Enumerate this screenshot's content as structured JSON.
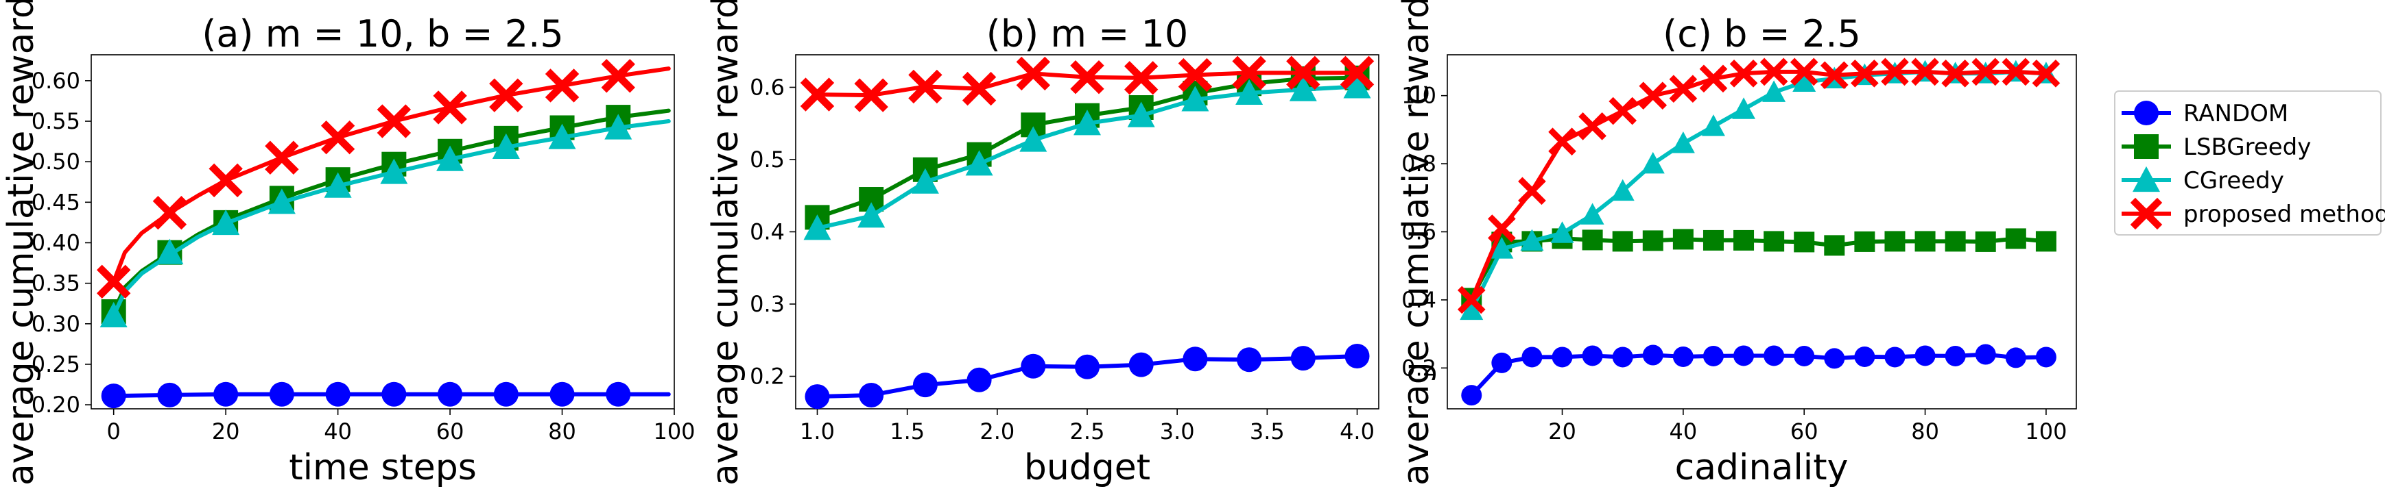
{
  "chart_data": [
    {
      "type": "line",
      "title": "(a) m = 10, b = 2.5",
      "xlabel": "time steps",
      "ylabel": "average cumulative rewards",
      "xlim": [
        -4,
        100
      ],
      "ylim": [
        0.195,
        0.632
      ],
      "xticks": [
        "0",
        "20",
        "40",
        "60",
        "80",
        "100"
      ],
      "yticks": [
        "0.20",
        "0.25",
        "0.30",
        "0.35",
        "0.40",
        "0.45",
        "0.50",
        "0.55",
        "0.60"
      ],
      "grid": false,
      "series": [
        {
          "name": "RANDOM",
          "curve_x": [
            0,
            10,
            20,
            30,
            40,
            50,
            60,
            70,
            80,
            90,
            99
          ],
          "curve_y": [
            0.211,
            0.212,
            0.213,
            0.213,
            0.213,
            0.213,
            0.213,
            0.213,
            0.213,
            0.213,
            0.213
          ],
          "marker_x": [
            0,
            10,
            20,
            30,
            40,
            50,
            60,
            70,
            80,
            90
          ],
          "marker_y": [
            0.211,
            0.212,
            0.213,
            0.213,
            0.213,
            0.213,
            0.213,
            0.213,
            0.213,
            0.213
          ]
        },
        {
          "name": "LSBGreedy",
          "curve_x": [
            0,
            2,
            5,
            10,
            15,
            20,
            30,
            40,
            50,
            60,
            70,
            80,
            90,
            99
          ],
          "curve_y": [
            0.315,
            0.345,
            0.365,
            0.388,
            0.41,
            0.428,
            0.455,
            0.478,
            0.497,
            0.513,
            0.529,
            0.542,
            0.555,
            0.563
          ],
          "marker_x": [
            0,
            10,
            20,
            30,
            40,
            50,
            60,
            70,
            80,
            90
          ],
          "marker_y": [
            0.315,
            0.388,
            0.425,
            0.455,
            0.478,
            0.497,
            0.513,
            0.529,
            0.542,
            0.555
          ]
        },
        {
          "name": "CGreedy",
          "curve_x": [
            0,
            2,
            5,
            10,
            15,
            20,
            30,
            40,
            50,
            60,
            70,
            80,
            90,
            99
          ],
          "curve_y": [
            0.31,
            0.34,
            0.362,
            0.385,
            0.407,
            0.424,
            0.45,
            0.47,
            0.487,
            0.503,
            0.518,
            0.53,
            0.542,
            0.55
          ],
          "marker_x": [
            0,
            10,
            20,
            30,
            40,
            50,
            60,
            70,
            80,
            90
          ],
          "marker_y": [
            0.31,
            0.388,
            0.424,
            0.45,
            0.47,
            0.487,
            0.503,
            0.518,
            0.53,
            0.542
          ]
        },
        {
          "name": "proposed method",
          "curve_x": [
            0,
            2,
            5,
            10,
            15,
            20,
            30,
            40,
            50,
            60,
            70,
            80,
            90,
            99
          ],
          "curve_y": [
            0.352,
            0.388,
            0.412,
            0.437,
            0.458,
            0.477,
            0.505,
            0.53,
            0.55,
            0.567,
            0.582,
            0.594,
            0.606,
            0.615
          ],
          "marker_x": [
            0,
            10,
            20,
            30,
            40,
            50,
            60,
            70,
            80,
            90
          ],
          "marker_y": [
            0.352,
            0.437,
            0.477,
            0.505,
            0.53,
            0.55,
            0.567,
            0.582,
            0.594,
            0.606
          ]
        }
      ]
    },
    {
      "type": "line",
      "title": "(b) m = 10",
      "xlabel": "budget",
      "ylabel": "average cumulative rewards",
      "xlim": [
        0.88,
        4.12
      ],
      "ylim": [
        0.155,
        0.645
      ],
      "xticks": [
        "1.0",
        "1.5",
        "2.0",
        "2.5",
        "3.0",
        "3.5",
        "4.0"
      ],
      "yticks": [
        "0.2",
        "0.3",
        "0.4",
        "0.5",
        "0.6"
      ],
      "grid": false,
      "series": [
        {
          "name": "RANDOM",
          "x": [
            1.0,
            1.3,
            1.6,
            1.9,
            2.2,
            2.5,
            2.8,
            3.1,
            3.4,
            3.7,
            4.0
          ],
          "values": [
            0.172,
            0.174,
            0.188,
            0.195,
            0.214,
            0.213,
            0.216,
            0.224,
            0.223,
            0.225,
            0.228
          ]
        },
        {
          "name": "LSBGreedy",
          "x": [
            1.0,
            1.3,
            1.6,
            1.9,
            2.2,
            2.5,
            2.8,
            3.1,
            3.4,
            3.7,
            4.0
          ],
          "values": [
            0.42,
            0.445,
            0.486,
            0.507,
            0.548,
            0.561,
            0.572,
            0.592,
            0.605,
            0.612,
            0.613
          ]
        },
        {
          "name": "CGreedy",
          "x": [
            1.0,
            1.3,
            1.6,
            1.9,
            2.2,
            2.5,
            2.8,
            3.1,
            3.4,
            3.7,
            4.0
          ],
          "values": [
            0.405,
            0.422,
            0.469,
            0.494,
            0.527,
            0.55,
            0.561,
            0.583,
            0.592,
            0.597,
            0.601
          ]
        },
        {
          "name": "proposed method",
          "x": [
            1.0,
            1.3,
            1.6,
            1.9,
            2.2,
            2.5,
            2.8,
            3.1,
            3.4,
            3.7,
            4.0
          ],
          "values": [
            0.59,
            0.589,
            0.601,
            0.598,
            0.619,
            0.614,
            0.613,
            0.617,
            0.62,
            0.62,
            0.62
          ]
        }
      ]
    },
    {
      "type": "line",
      "title": "(c) b = 2.5",
      "xlabel": "cadinality",
      "ylabel": "average cumulative rewards",
      "xlim": [
        1,
        105
      ],
      "ylim": [
        0.08,
        1.12
      ],
      "xticks": [
        "20",
        "40",
        "60",
        "80",
        "100"
      ],
      "yticks": [
        "0.2",
        "0.4",
        "0.6",
        "0.8",
        "1.0"
      ],
      "grid": false,
      "series": [
        {
          "name": "RANDOM",
          "x": [
            5,
            10,
            15,
            20,
            25,
            30,
            35,
            40,
            45,
            50,
            55,
            60,
            65,
            70,
            75,
            80,
            85,
            90,
            95,
            100
          ],
          "values": [
            0.12,
            0.215,
            0.232,
            0.232,
            0.236,
            0.232,
            0.238,
            0.233,
            0.235,
            0.236,
            0.236,
            0.235,
            0.228,
            0.233,
            0.232,
            0.236,
            0.235,
            0.24,
            0.23,
            0.232
          ]
        },
        {
          "name": "LSBGreedy",
          "x": [
            5,
            10,
            15,
            20,
            25,
            30,
            35,
            40,
            45,
            50,
            55,
            60,
            65,
            70,
            75,
            80,
            85,
            90,
            95,
            100
          ],
          "values": [
            0.405,
            0.57,
            0.572,
            0.58,
            0.576,
            0.572,
            0.574,
            0.578,
            0.575,
            0.575,
            0.572,
            0.57,
            0.56,
            0.571,
            0.572,
            0.572,
            0.572,
            0.571,
            0.58,
            0.572
          ]
        },
        {
          "name": "CGreedy",
          "x": [
            5,
            10,
            15,
            20,
            25,
            30,
            35,
            40,
            45,
            50,
            55,
            60,
            65,
            70,
            75,
            80,
            85,
            90,
            95,
            100
          ],
          "values": [
            0.37,
            0.55,
            0.573,
            0.596,
            0.65,
            0.72,
            0.8,
            0.86,
            0.91,
            0.96,
            1.01,
            1.04,
            1.05,
            1.06,
            1.065,
            1.07,
            1.065,
            1.065,
            1.07,
            1.065
          ]
        },
        {
          "name": "proposed method",
          "x": [
            5,
            10,
            15,
            20,
            25,
            30,
            35,
            40,
            45,
            50,
            55,
            60,
            65,
            70,
            75,
            80,
            85,
            90,
            95,
            100
          ],
          "values": [
            0.4,
            0.61,
            0.72,
            0.865,
            0.91,
            0.955,
            1.0,
            1.02,
            1.05,
            1.065,
            1.07,
            1.07,
            1.06,
            1.065,
            1.07,
            1.07,
            1.065,
            1.07,
            1.07,
            1.065
          ]
        }
      ]
    }
  ],
  "legend": {
    "placement": "right",
    "entries": [
      "RANDOM",
      "LSBGreedy",
      "CGreedy",
      "proposed method"
    ]
  },
  "styles": {
    "RANDOM": {
      "color": "#0000ff",
      "marker": "circle"
    },
    "LSBGreedy": {
      "color": "#008000",
      "marker": "square"
    },
    "CGreedy": {
      "color": "#00bfbf",
      "marker": "triangle"
    },
    "proposed method": {
      "color": "#ff0000",
      "marker": "x"
    }
  }
}
